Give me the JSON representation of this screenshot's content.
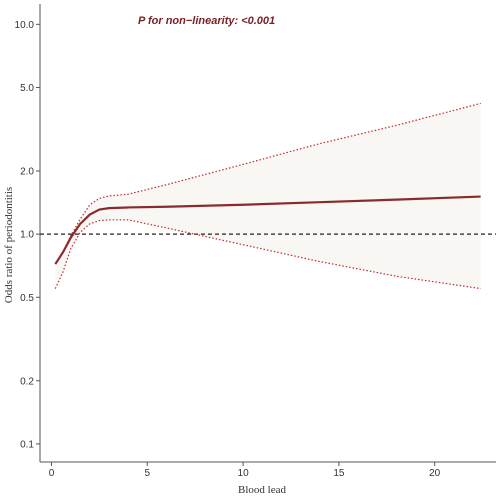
{
  "chart_data": {
    "type": "line",
    "annotation": "P for non−linearity: <0.001",
    "xlabel": "Blood lead",
    "ylabel": "Odds ratio of periodontitis",
    "x_ticks": [
      0,
      5,
      10,
      15,
      20
    ],
    "x_tick_labels": [
      "0",
      "5",
      "10",
      "15",
      "20"
    ],
    "y_ticks": [
      0.1,
      0.2,
      0.5,
      1.0,
      2.0,
      5.0,
      10.0
    ],
    "y_tick_labels": [
      "0.1",
      "0.2",
      "0.5",
      "1.0",
      "2.0",
      "5.0",
      "10.0"
    ],
    "xlim": [
      -0.6,
      23.2
    ],
    "ylim": [
      0.082,
      12.5
    ],
    "y_scale": "log",
    "reference_line": 1.0,
    "grid": false,
    "series": [
      {
        "role": "estimate",
        "x": [
          0.2,
          0.6,
          1.0,
          1.5,
          2.0,
          2.5,
          3.0,
          4.0,
          6.0,
          10.0,
          14.0,
          18.0,
          22.4
        ],
        "y": [
          0.72,
          0.82,
          0.96,
          1.12,
          1.24,
          1.31,
          1.33,
          1.34,
          1.35,
          1.38,
          1.42,
          1.46,
          1.51
        ]
      },
      {
        "role": "upper_ci",
        "x": [
          0.2,
          0.6,
          1.0,
          1.5,
          2.0,
          2.5,
          3.0,
          4.0,
          6.0,
          10.0,
          14.0,
          18.0,
          22.4
        ],
        "y": [
          0.72,
          0.82,
          0.98,
          1.18,
          1.38,
          1.48,
          1.52,
          1.55,
          1.72,
          2.15,
          2.7,
          3.3,
          4.2
        ]
      },
      {
        "role": "lower_ci",
        "x": [
          0.2,
          0.6,
          1.0,
          1.5,
          2.0,
          2.5,
          3.0,
          4.0,
          6.0,
          10.0,
          14.0,
          18.0,
          22.4
        ],
        "y": [
          0.55,
          0.66,
          0.85,
          1.02,
          1.12,
          1.16,
          1.17,
          1.17,
          1.07,
          0.89,
          0.74,
          0.63,
          0.55
        ]
      }
    ],
    "colors": {
      "estimate": "#8b2a2e",
      "ci": "#c0282d",
      "band_fill": "#f8f7f3",
      "reference": "#222222",
      "annotation": "#7a1f24",
      "axis": "#555555"
    }
  }
}
